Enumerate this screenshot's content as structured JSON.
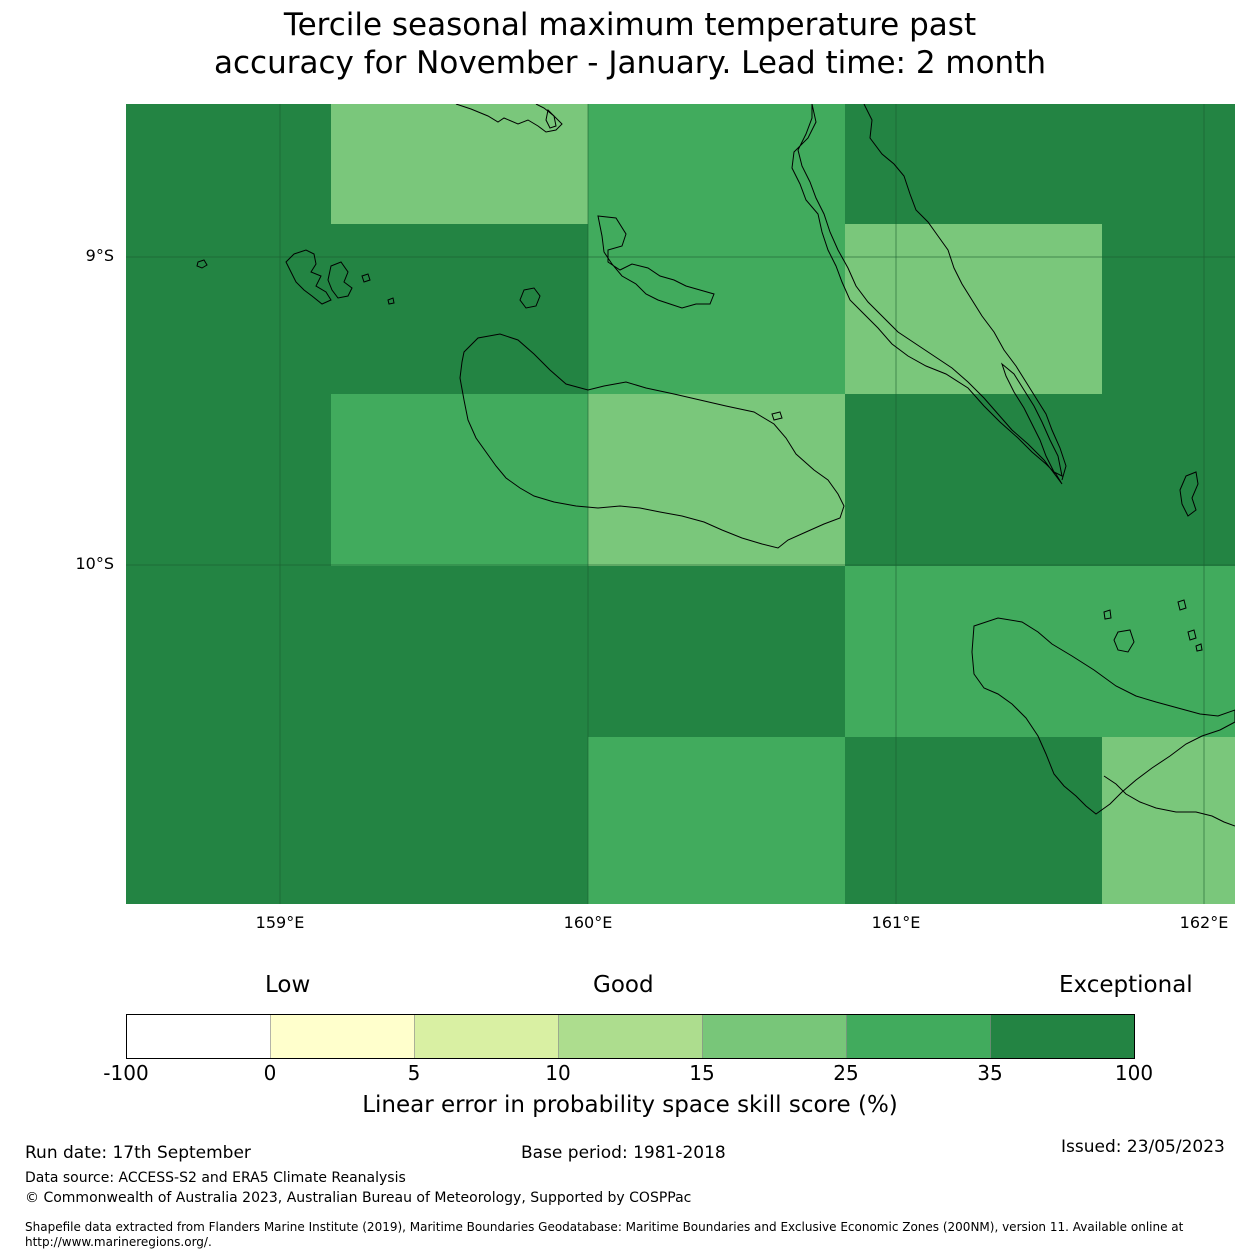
{
  "title_line1": "Tercile seasonal maximum temperature past",
  "title_line2": "accuracy for November - January. Lead time: 2 month",
  "map": {
    "lon_range": [
      158.5,
      162.1
    ],
    "lat_range": [
      -11.1,
      -8.5
    ],
    "lat_labels": [
      "9°S",
      "10°S"
    ],
    "lon_labels": [
      "159°E",
      "160°E",
      "161°E",
      "162°E"
    ],
    "palette": {
      "c5": "#7ac77b",
      "c6": "#41ab5d",
      "c7": "#238443"
    },
    "cells": [
      {
        "lon": [
          158.5,
          159.167
        ],
        "lat": [
          -8.5,
          -8.889
        ],
        "class": "c7"
      },
      {
        "lon": [
          159.167,
          160.0
        ],
        "lat": [
          -8.5,
          -8.889
        ],
        "class": "c5"
      },
      {
        "lon": [
          160.0,
          160.833
        ],
        "lat": [
          -8.5,
          -8.889
        ],
        "class": "c6"
      },
      {
        "lon": [
          160.833,
          161.667
        ],
        "lat": [
          -8.5,
          -8.889
        ],
        "class": "c7"
      },
      {
        "lon": [
          161.667,
          162.1
        ],
        "lat": [
          -8.5,
          -8.889
        ],
        "class": "c7"
      },
      {
        "lon": [
          158.5,
          159.167
        ],
        "lat": [
          -8.889,
          -9.444
        ],
        "class": "c7"
      },
      {
        "lon": [
          159.167,
          160.0
        ],
        "lat": [
          -8.889,
          -9.444
        ],
        "class": "c7"
      },
      {
        "lon": [
          160.0,
          160.833
        ],
        "lat": [
          -8.889,
          -9.444
        ],
        "class": "c6"
      },
      {
        "lon": [
          160.833,
          161.667
        ],
        "lat": [
          -8.889,
          -9.444
        ],
        "class": "c5"
      },
      {
        "lon": [
          161.667,
          162.1
        ],
        "lat": [
          -8.889,
          -9.444
        ],
        "class": "c7"
      },
      {
        "lon": [
          158.5,
          159.167
        ],
        "lat": [
          -9.444,
          -10.0
        ],
        "class": "c7"
      },
      {
        "lon": [
          159.167,
          160.0
        ],
        "lat": [
          -9.444,
          -10.0
        ],
        "class": "c6"
      },
      {
        "lon": [
          160.0,
          160.833
        ],
        "lat": [
          -9.444,
          -10.0
        ],
        "class": "c5"
      },
      {
        "lon": [
          160.833,
          161.667
        ],
        "lat": [
          -9.444,
          -10.0
        ],
        "class": "c7"
      },
      {
        "lon": [
          161.667,
          162.1
        ],
        "lat": [
          -9.444,
          -10.0
        ],
        "class": "c7"
      },
      {
        "lon": [
          158.5,
          159.167
        ],
        "lat": [
          -10.0,
          -10.556
        ],
        "class": "c7"
      },
      {
        "lon": [
          159.167,
          160.0
        ],
        "lat": [
          -10.0,
          -10.556
        ],
        "class": "c7"
      },
      {
        "lon": [
          160.0,
          160.833
        ],
        "lat": [
          -10.0,
          -10.556
        ],
        "class": "c7"
      },
      {
        "lon": [
          160.833,
          161.667
        ],
        "lat": [
          -10.0,
          -10.556
        ],
        "class": "c6"
      },
      {
        "lon": [
          161.667,
          162.1
        ],
        "lat": [
          -10.0,
          -10.556
        ],
        "class": "c6"
      },
      {
        "lon": [
          158.5,
          159.167
        ],
        "lat": [
          -10.556,
          -11.1
        ],
        "class": "c7"
      },
      {
        "lon": [
          159.167,
          160.0
        ],
        "lat": [
          -10.556,
          -11.1
        ],
        "class": "c7"
      },
      {
        "lon": [
          160.0,
          160.833
        ],
        "lat": [
          -10.556,
          -11.1
        ],
        "class": "c6"
      },
      {
        "lon": [
          160.833,
          161.667
        ],
        "lat": [
          -10.556,
          -11.1
        ],
        "class": "c7"
      },
      {
        "lon": [
          161.667,
          162.1
        ],
        "lat": [
          -10.556,
          -11.1
        ],
        "class": "c5"
      }
    ]
  },
  "colorbar": {
    "head_low": "Low",
    "head_good": "Good",
    "head_exceptional": "Exceptional",
    "ticks": [
      "-100",
      "0",
      "5",
      "10",
      "15",
      "25",
      "35",
      "100"
    ],
    "colors": [
      "#ffffff",
      "#ffffcc",
      "#d9f0a3",
      "#addd8e",
      "#78c679",
      "#41ab5d",
      "#238443"
    ],
    "label": "Linear error in probability space skill score (%)"
  },
  "footer": {
    "run_date": "Run date: 17th September",
    "base_period": "Base period: 1981-2018",
    "issued": "Issued: 23/05/2023",
    "data_source": "Data source: ACCESS-S2 and ERA5 Climate Reanalysis",
    "copyright": "© Commonwealth of Australia 2023, Australian Bureau of Meteorology, Supported by COSPPac",
    "shapefile": "Shapefile data extracted from Flanders Marine Institute (2019), Maritime Boundaries Geodatabase: Maritime Boundaries and Exclusive Economic Zones (200NM), version 11. Available online at http://www.marineregions.org/."
  }
}
